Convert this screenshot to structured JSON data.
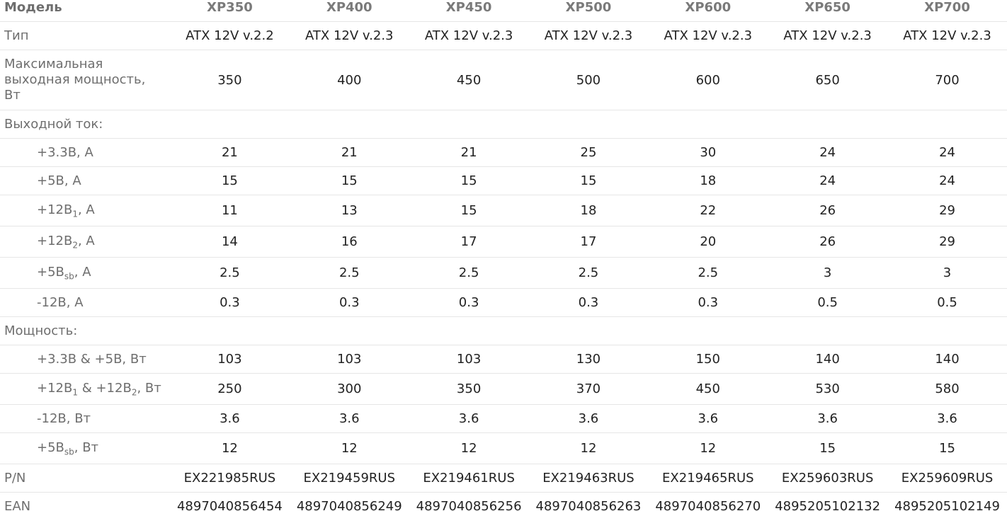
{
  "table": {
    "header": [
      "Модель",
      "XP350",
      "XP400",
      "XP450",
      "XP500",
      "XP600",
      "XP650",
      "XP700"
    ],
    "rows": [
      {
        "label": [
          "Тип"
        ],
        "cells": [
          "ATX 12V v.2.2",
          "ATX 12V v.2.3",
          "ATX 12V v.2.3",
          "ATX 12V v.2.3",
          "ATX 12V v.2.3",
          "ATX 12V v.2.3",
          "ATX 12V v.2.3"
        ]
      },
      {
        "label": [
          "Максимальная выходная мощность, Вт"
        ],
        "cells": [
          "350",
          "400",
          "450",
          "500",
          "600",
          "650",
          "700"
        ]
      },
      {
        "section": "Выходной ток:",
        "rows": [
          {
            "label": [
              "+3.3В, А"
            ],
            "cells": [
              "21",
              "21",
              "21",
              "25",
              "30",
              "24",
              "24"
            ]
          },
          {
            "label": [
              "+5В, А"
            ],
            "cells": [
              "15",
              "15",
              "15",
              "15",
              "18",
              "24",
              "24"
            ]
          },
          {
            "label": [
              "+12В",
              "1",
              ", А"
            ],
            "cells": [
              "11",
              "13",
              "15",
              "18",
              "22",
              "26",
              "29"
            ]
          },
          {
            "label": [
              "+12В",
              "2",
              ", А"
            ],
            "cells": [
              "14",
              "16",
              "17",
              "17",
              "20",
              "26",
              "29"
            ]
          },
          {
            "label": [
              "+5В",
              "sb",
              ", А"
            ],
            "cells": [
              "2.5",
              "2.5",
              "2.5",
              "2.5",
              "2.5",
              "3",
              "3"
            ]
          },
          {
            "label": [
              "-12В, А"
            ],
            "cells": [
              "0.3",
              "0.3",
              "0.3",
              "0.3",
              "0.3",
              "0.5",
              "0.5"
            ]
          }
        ]
      },
      {
        "section": "Мощность:",
        "rows": [
          {
            "label": [
              "+3.3В & +5В, Вт"
            ],
            "cells": [
              "103",
              "103",
              "103",
              "130",
              "150",
              "140",
              "140"
            ]
          },
          {
            "label": [
              "+12В",
              "1",
              " & +12В",
              "2",
              ", Вт"
            ],
            "cells": [
              "250",
              "300",
              "350",
              "370",
              "450",
              "530",
              "580"
            ]
          },
          {
            "label": [
              "-12В, Вт"
            ],
            "cells": [
              "3.6",
              "3.6",
              "3.6",
              "3.6",
              "3.6",
              "3.6",
              "3.6"
            ]
          },
          {
            "label": [
              "+5В",
              "sb",
              ", Вт"
            ],
            "cells": [
              "12",
              "12",
              "12",
              "12",
              "12",
              "15",
              "15"
            ]
          }
        ]
      },
      {
        "label": [
          "P/N"
        ],
        "cells": [
          "EX221985RUS",
          "EX219459RUS",
          "EX219461RUS",
          "EX219463RUS",
          "EX219465RUS",
          "EX259603RUS",
          "EX259609RUS"
        ]
      },
      {
        "label": [
          "EAN"
        ],
        "cells": [
          "4897040856454",
          "4897040856249",
          "4897040856256",
          "4897040856263",
          "4897040856270",
          "4895205102132",
          "4895205102149"
        ]
      }
    ]
  }
}
